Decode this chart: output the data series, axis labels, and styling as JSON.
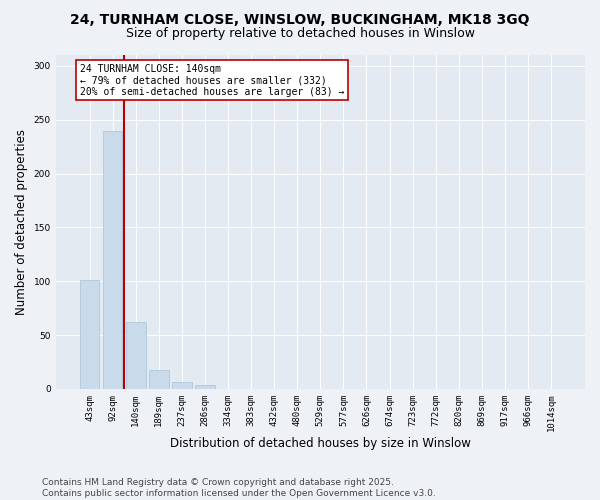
{
  "title1": "24, TURNHAM CLOSE, WINSLOW, BUCKINGHAM, MK18 3GQ",
  "title2": "Size of property relative to detached houses in Winslow",
  "xlabel": "Distribution of detached houses by size in Winslow",
  "ylabel": "Number of detached properties",
  "categories": [
    "43sqm",
    "92sqm",
    "140sqm",
    "189sqm",
    "237sqm",
    "286sqm",
    "334sqm",
    "383sqm",
    "432sqm",
    "480sqm",
    "529sqm",
    "577sqm",
    "626sqm",
    "674sqm",
    "723sqm",
    "772sqm",
    "820sqm",
    "869sqm",
    "917sqm",
    "966sqm",
    "1014sqm"
  ],
  "values": [
    101,
    239,
    62,
    18,
    6,
    4,
    0,
    0,
    0,
    0,
    0,
    0,
    0,
    0,
    0,
    0,
    0,
    0,
    0,
    0,
    0
  ],
  "bar_color": "#c9daea",
  "bar_edge_color": "#a8c4d8",
  "highlight_bar_index": 2,
  "highlight_line_color": "#bb0000",
  "annotation_line1": "24 TURNHAM CLOSE: 140sqm",
  "annotation_line2": "← 79% of detached houses are smaller (332)",
  "annotation_line3": "20% of semi-detached houses are larger (83) →",
  "annotation_box_facecolor": "#ffffff",
  "annotation_box_edgecolor": "#bb0000",
  "ylim": [
    0,
    310
  ],
  "yticks": [
    0,
    50,
    100,
    150,
    200,
    250,
    300
  ],
  "footer": "Contains HM Land Registry data © Crown copyright and database right 2025.\nContains public sector information licensed under the Open Government Licence v3.0.",
  "bg_color": "#eef2f7",
  "plot_bg_color": "#e4eaf2",
  "grid_color": "#ffffff",
  "title1_fontsize": 10,
  "title2_fontsize": 9,
  "tick_fontsize": 6.5,
  "label_fontsize": 8.5,
  "footer_fontsize": 6.5,
  "annotation_fontsize": 7
}
